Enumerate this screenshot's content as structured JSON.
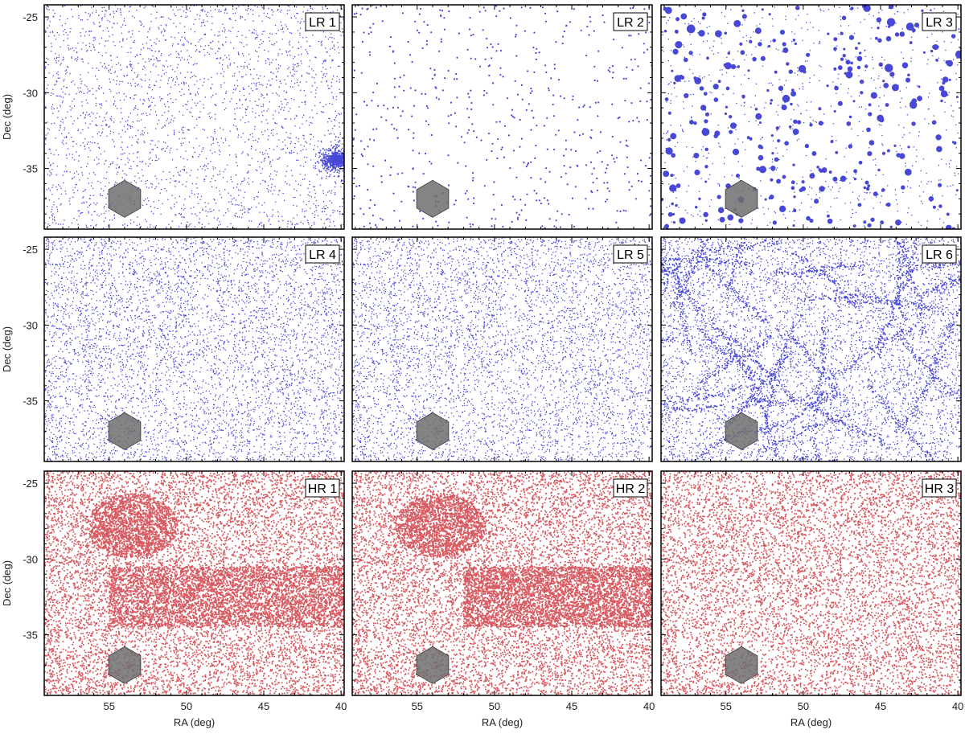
{
  "axes": {
    "xlabel": "RA (deg)",
    "ylabel": "Dec (deg)",
    "x_ticks": [
      55,
      50,
      45,
      40
    ],
    "y_ticks": [
      -25,
      -30,
      -35
    ],
    "xlim": [
      59.2,
      39.8
    ],
    "ylim": [
      -39.0,
      -24.2
    ]
  },
  "colors": {
    "low_res": "#1a1acc",
    "high_res": "#c8141e",
    "footprint_fill": "#6f6f6f",
    "frame": "#000000"
  },
  "chart_data": [
    {
      "type": "scatter",
      "label": "LR 1",
      "row": 0,
      "col": 0,
      "palette": "low_res",
      "density": "sparse",
      "features": [
        {
          "kind": "cluster",
          "ra": 40.3,
          "dec": -34.4,
          "radius_deg": 1.1
        }
      ],
      "footprint_center": [
        54.0,
        -37.0
      ]
    },
    {
      "type": "scatter",
      "label": "LR 2",
      "row": 0,
      "col": 1,
      "palette": "low_res",
      "density": "very-sparse",
      "features": [],
      "footprint_center": [
        54.0,
        -37.0
      ]
    },
    {
      "type": "scatter",
      "label": "LR 3",
      "row": 0,
      "col": 2,
      "palette": "low_res",
      "density": "clumped",
      "features": [
        {
          "kind": "halos",
          "count": 320
        }
      ],
      "footprint_center": [
        54.0,
        -37.0
      ]
    },
    {
      "type": "scatter",
      "label": "LR 4",
      "row": 1,
      "col": 0,
      "palette": "low_res",
      "density": "dense",
      "features": [],
      "footprint_center": [
        54.0,
        -37.0
      ]
    },
    {
      "type": "scatter",
      "label": "LR 5",
      "row": 1,
      "col": 1,
      "palette": "low_res",
      "density": "dense",
      "features": [],
      "footprint_center": [
        54.0,
        -37.0
      ]
    },
    {
      "type": "scatter",
      "label": "LR 6",
      "row": 1,
      "col": 2,
      "palette": "low_res",
      "density": "very-dense",
      "features": [
        {
          "kind": "filaments"
        }
      ],
      "footprint_center": [
        54.0,
        -37.0
      ]
    },
    {
      "type": "scatter",
      "label": "HR 1",
      "row": 2,
      "col": 0,
      "palette": "high_res",
      "density": "very-dense",
      "features": [
        {
          "kind": "overdensity",
          "ra": 53.5,
          "dec": -27.8,
          "radius_deg": 2.0
        },
        {
          "kind": "band",
          "dec_min": -34.5,
          "dec_max": -30.5,
          "ra_min": 39.8,
          "ra_max": 55.0
        }
      ],
      "footprint_center": [
        54.0,
        -37.0
      ]
    },
    {
      "type": "scatter",
      "label": "HR 2",
      "row": 2,
      "col": 1,
      "palette": "high_res",
      "density": "very-dense",
      "features": [
        {
          "kind": "overdensity",
          "ra": 53.5,
          "dec": -27.8,
          "radius_deg": 2.0
        },
        {
          "kind": "band",
          "dec_min": -34.5,
          "dec_max": -30.5,
          "ra_min": 39.8,
          "ra_max": 52.0
        }
      ],
      "footprint_center": [
        54.0,
        -37.0
      ]
    },
    {
      "type": "scatter",
      "label": "HR 3",
      "row": 2,
      "col": 2,
      "palette": "high_res",
      "density": "dense",
      "features": [],
      "footprint_center": [
        54.0,
        -37.0
      ]
    }
  ]
}
